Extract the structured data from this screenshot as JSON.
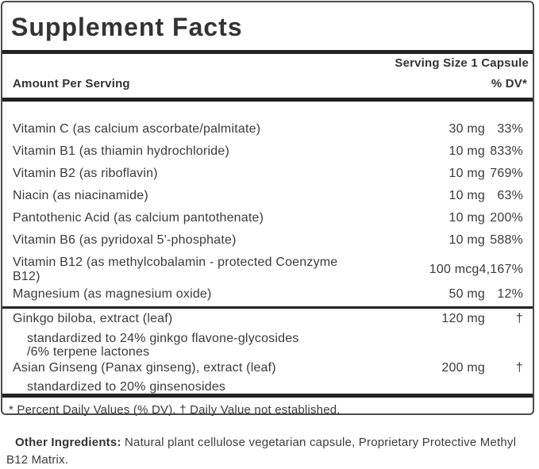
{
  "label": {
    "title": "Supplement Facts",
    "serving_size": "Serving Size 1 Capsule",
    "columns": {
      "amount_header": "Amount Per Serving",
      "dv_header": "% DV*"
    },
    "nutrients": [
      {
        "name": "Vitamin C (as calcium ascorbate/palmitate)",
        "amount": "30 mg",
        "dv": "33%"
      },
      {
        "name": "Vitamin B1 (as thiamin hydrochloride)",
        "amount": "10 mg",
        "dv": "833%"
      },
      {
        "name": "Vitamin B2 (as riboflavin)",
        "amount": "10 mg",
        "dv": "769%"
      },
      {
        "name": "Niacin (as niacinamide)",
        "amount": "10 mg",
        "dv": "63%"
      },
      {
        "name": "Pantothenic Acid (as calcium pantothenate)",
        "amount": "10 mg",
        "dv": "200%"
      },
      {
        "name": "Vitamin B6 (as pyridoxal 5'-phosphate)",
        "amount": "10 mg",
        "dv": "588%"
      },
      {
        "name": "Vitamin B12 (as methylcobalamin - protected Coenzyme B12)",
        "amount": "100 mcg",
        "dv": "4,167%"
      },
      {
        "name": "Magnesium (as magnesium oxide)",
        "amount": "50 mg",
        "dv": "12%"
      }
    ],
    "botanicals": [
      {
        "name": "Ginkgo biloba, extract (leaf)",
        "amount": "120 mg",
        "dv": "†",
        "details": [
          "standardized to 24% ginkgo flavone-glycosides",
          "/6% terpene lactones"
        ]
      },
      {
        "name": "Asian Ginseng (Panax ginseng), extract (leaf)",
        "amount": "200 mg",
        "dv": "†",
        "details": [
          "standardized to 20% ginsenosides"
        ]
      }
    ],
    "footnote": "* Percent Daily Values (% DV). † Daily Value not established.",
    "other_ingredients": {
      "label": "Other Ingredients:",
      "text": " Natural plant cellulose vegetarian capsule, Proprietary Protective Methyl B12 Matrix."
    }
  },
  "colors": {
    "text": "#3a3a3a",
    "heading_text": "#333333",
    "bar": "#222222",
    "border": "#4b4b4b",
    "background": "#ffffff"
  }
}
